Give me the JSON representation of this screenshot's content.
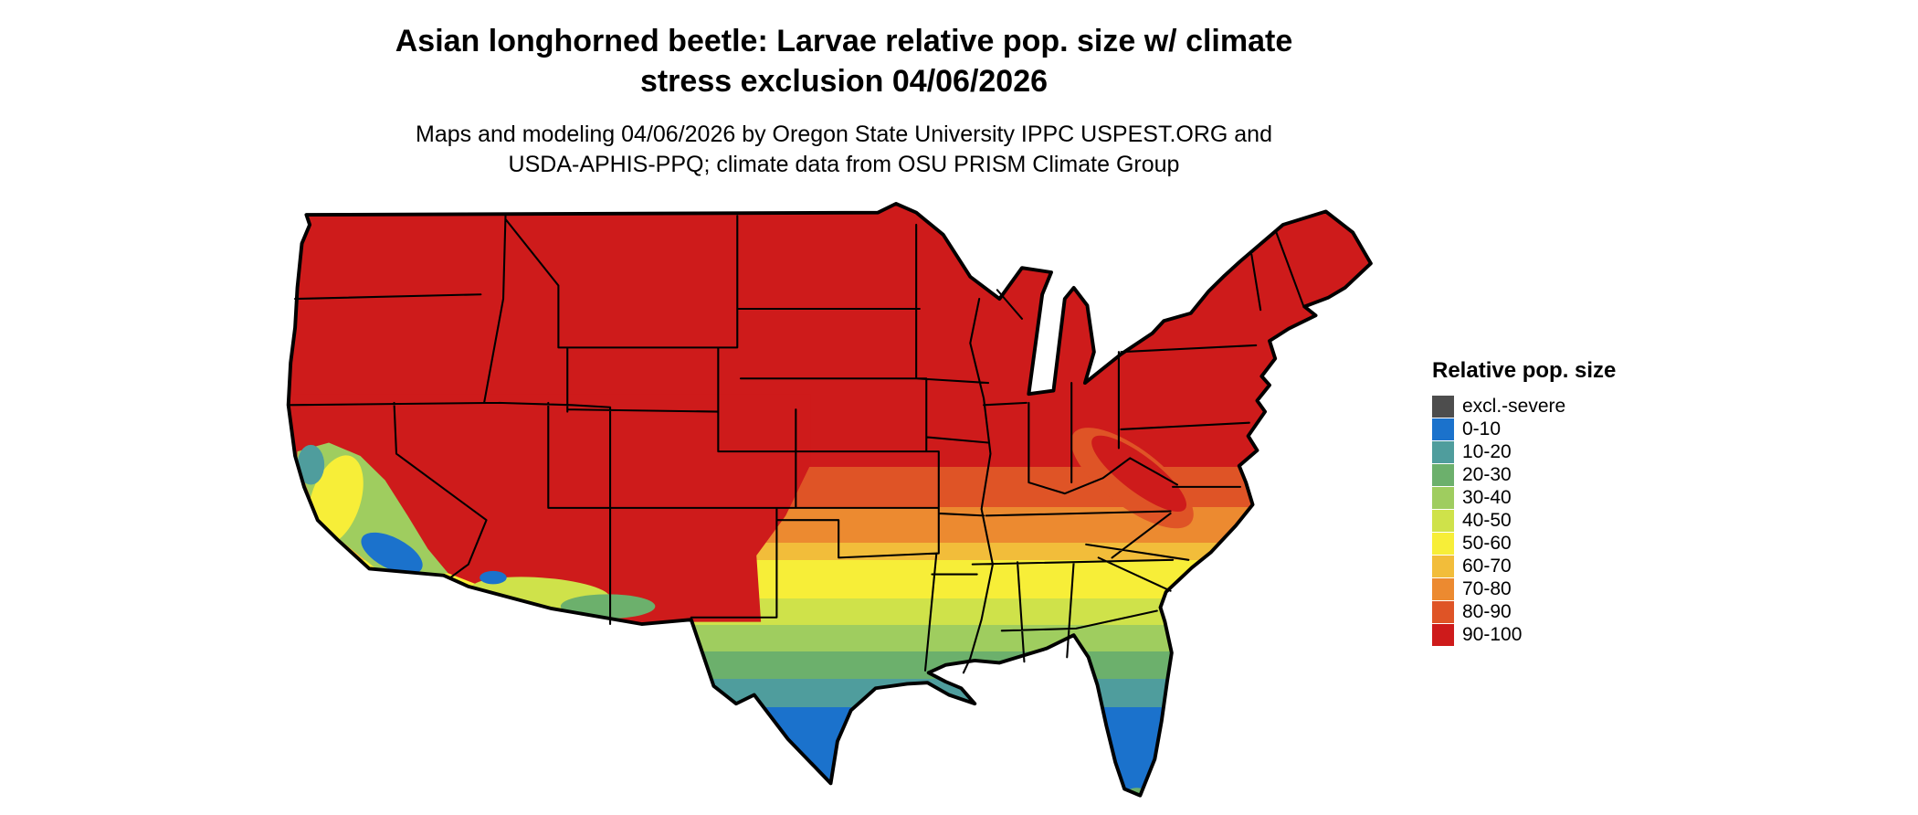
{
  "header": {
    "title_line1": "Asian longhorned beetle: Larvae relative pop. size w/ climate",
    "title_line2": "stress exclusion 04/06/2026",
    "subtitle_line1": "Maps and modeling 04/06/2026 by Oregon State University IPPC USPEST.ORG and",
    "subtitle_line2": "USDA-APHIS-PPQ; climate data from OSU PRISM Climate Group"
  },
  "legend": {
    "title": "Relative pop. size",
    "items": [
      {
        "label": "excl.-severe",
        "color": "#4d4d4d"
      },
      {
        "label": "0-10",
        "color": "#1b72cc"
      },
      {
        "label": "10-20",
        "color": "#4f9d9d"
      },
      {
        "label": "20-30",
        "color": "#6cb06c"
      },
      {
        "label": "30-40",
        "color": "#9fcd5f"
      },
      {
        "label": "40-50",
        "color": "#cfe24a"
      },
      {
        "label": "50-60",
        "color": "#f7ee38"
      },
      {
        "label": "60-70",
        "color": "#f2bd3a"
      },
      {
        "label": "70-80",
        "color": "#ec8a30"
      },
      {
        "label": "80-90",
        "color": "#df5426"
      },
      {
        "label": "90-100",
        "color": "#ce1b1b"
      }
    ]
  },
  "map": {
    "bands": [
      {
        "color": "#ce1b1b",
        "from": 0.0,
        "to": 0.45
      },
      {
        "color": "#df5426",
        "from": 0.45,
        "to": 0.515
      },
      {
        "color": "#ec8a30",
        "from": 0.515,
        "to": 0.572
      },
      {
        "color": "#f2bd3a",
        "from": 0.572,
        "to": 0.6
      },
      {
        "color": "#f7ee38",
        "from": 0.6,
        "to": 0.662
      },
      {
        "color": "#cfe24a",
        "from": 0.662,
        "to": 0.705
      },
      {
        "color": "#9fcd5f",
        "from": 0.705,
        "to": 0.748
      },
      {
        "color": "#6cb06c",
        "from": 0.748,
        "to": 0.792
      },
      {
        "color": "#4f9d9d",
        "from": 0.792,
        "to": 0.838
      },
      {
        "color": "#1b72cc",
        "from": 0.838,
        "to": 1.0
      }
    ]
  }
}
